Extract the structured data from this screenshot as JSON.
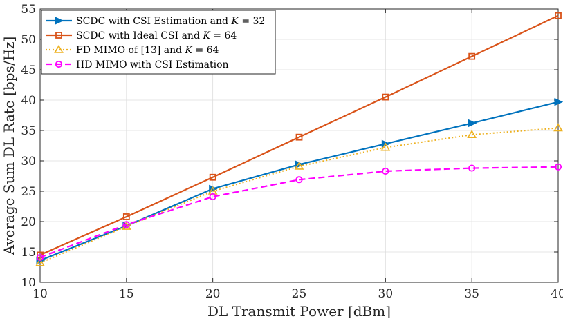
{
  "chart_data": {
    "type": "line",
    "title": "",
    "xlabel": "DL Transmit Power [dBm]",
    "ylabel": "Average Sum DL Rate [bps/Hz]",
    "xlim": [
      10,
      40
    ],
    "ylim": [
      10,
      55
    ],
    "xticks": [
      "10",
      "15",
      "20",
      "25",
      "30",
      "35",
      "40"
    ],
    "yticks": [
      "10",
      "15",
      "20",
      "25",
      "30",
      "35",
      "40",
      "45",
      "50",
      "55"
    ],
    "grid": true,
    "legend_position": "top-left",
    "x": [
      10,
      15,
      20,
      25,
      30,
      35,
      40
    ],
    "series": [
      {
        "name": "SCDC with CSI Estimation and K = 32",
        "legend_prefix": "SCDC with CSI Estimation and ",
        "legend_var": "K",
        "legend_suffix": " = 32",
        "values": [
          13.6,
          19.3,
          25.4,
          29.4,
          32.8,
          36.2,
          39.7
        ],
        "color": "#0072BD",
        "marker": "triangle-right",
        "style": "solid"
      },
      {
        "name": "SCDC with Ideal CSI and K = 64",
        "legend_prefix": "SCDC with Ideal CSI and ",
        "legend_var": "K",
        "legend_suffix": " = 64",
        "values": [
          14.5,
          20.8,
          27.3,
          33.9,
          40.5,
          47.2,
          53.9
        ],
        "color": "#D95319",
        "marker": "square",
        "style": "solid"
      },
      {
        "name": "FD MIMO of [13] and K = 64",
        "legend_prefix": "FD MIMO of [13] and ",
        "legend_var": "K",
        "legend_suffix": " = 64",
        "values": [
          13.2,
          19.2,
          25.0,
          29.1,
          32.2,
          34.3,
          35.4
        ],
        "color": "#EDB120",
        "marker": "triangle-up",
        "style": "dotted"
      },
      {
        "name": "HD MIMO with CSI Estimation",
        "legend_prefix": "HD MIMO with CSI Estimation",
        "legend_var": "",
        "legend_suffix": "",
        "values": [
          14.1,
          19.5,
          24.1,
          26.9,
          28.3,
          28.8,
          29.0
        ],
        "color": "#FF00FF",
        "marker": "circle",
        "style": "dashed"
      }
    ]
  }
}
